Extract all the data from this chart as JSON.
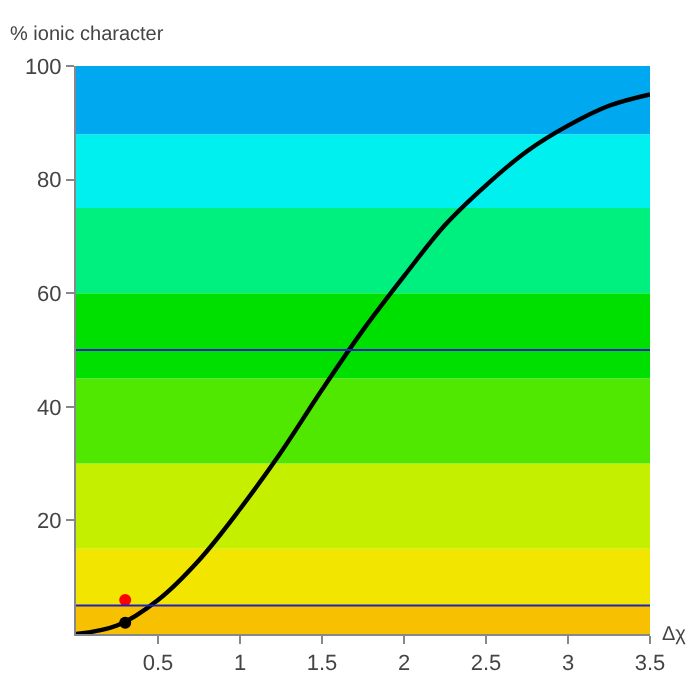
{
  "chart_data": {
    "type": "line",
    "xlabel": "Δχ",
    "ylabel": "% ionic character",
    "xlim": [
      0,
      3.5
    ],
    "ylim": [
      0,
      100
    ],
    "xticks": [
      0.5,
      1.0,
      1.5,
      2.0,
      2.5,
      3.0,
      3.5
    ],
    "yticks": [
      20,
      40,
      60,
      80,
      100
    ],
    "grid": false,
    "legend": false,
    "series": [
      {
        "color": "#000000",
        "x": [
          0,
          0.25,
          0.5,
          0.75,
          1.0,
          1.25,
          1.5,
          1.75,
          2.0,
          2.25,
          2.5,
          2.75,
          3.0,
          3.25,
          3.5
        ],
        "values": [
          0,
          1.5,
          6,
          13,
          22,
          32,
          43,
          53.5,
          63,
          72,
          79,
          85,
          89.5,
          93,
          95
        ]
      },
      {
        "type": "scatter",
        "color": "#ff0000",
        "x": [
          0.3
        ],
        "values": [
          6
        ],
        "marker": "circle"
      },
      {
        "type": "scatter",
        "color": "#000000",
        "x": [
          0.3
        ],
        "values": [
          2
        ],
        "marker": "circle"
      }
    ],
    "ref_lines": [
      {
        "axis": "y",
        "value": 5,
        "color": "#2020c0"
      },
      {
        "axis": "y",
        "value": 50,
        "color": "#2020c0"
      }
    ],
    "bands": [
      {
        "axis": "y",
        "from": 0,
        "to": 5,
        "color": "#f7c000"
      },
      {
        "axis": "y",
        "from": 5,
        "to": 15,
        "color": "#f2e600"
      },
      {
        "axis": "y",
        "from": 15,
        "to": 30,
        "color": "#c4f000"
      },
      {
        "axis": "y",
        "from": 30,
        "to": 45,
        "color": "#50e800"
      },
      {
        "axis": "y",
        "from": 45,
        "to": 60,
        "color": "#00e000"
      },
      {
        "axis": "y",
        "from": 60,
        "to": 75,
        "color": "#00f080"
      },
      {
        "axis": "y",
        "from": 75,
        "to": 88,
        "color": "#00f0f0"
      },
      {
        "axis": "y",
        "from": 88,
        "to": 100,
        "color": "#00a8f0"
      }
    ]
  }
}
